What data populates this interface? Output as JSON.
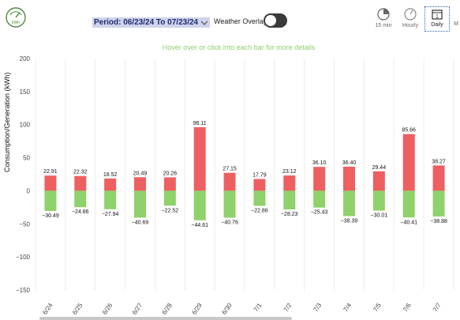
{
  "header": {
    "period_label": "Period: 06/23/24 To 07/23/24",
    "weather_overlay_label": "Weather Overlay",
    "weather_overlay_on": false,
    "views": [
      {
        "label": "15 min",
        "icon": "clock-icon"
      },
      {
        "label": "Hourly",
        "icon": "gauge-icon"
      },
      {
        "label": "Daily",
        "icon": "calendar-day-icon",
        "active": true
      },
      {
        "label": "M",
        "icon": "calendar-month-icon"
      }
    ],
    "logo_icon": "kwh-meter-icon",
    "logo_text": "kWh"
  },
  "hint": "Hover over or click into each bar for more details",
  "chart_data": {
    "type": "bar",
    "ylabel": "Consumption/Generation (kWh)",
    "ylim": [
      -150,
      200
    ],
    "yticks": [
      200,
      150,
      100,
      50,
      0,
      -50,
      -100,
      -150
    ],
    "grid": "vertical",
    "categories": [
      "6/24",
      "6/25",
      "6/26",
      "6/27",
      "6/28",
      "6/29",
      "6/30",
      "7/1",
      "7/2",
      "7/3",
      "7/4",
      "7/5",
      "7/6",
      "7/7"
    ],
    "series": [
      {
        "values": [
          22.91,
          22.32,
          18.52,
          20.49,
          20.26,
          96.11,
          27.15,
          17.79,
          23.12,
          36.1,
          36.4,
          29.44,
          85.66,
          38.27
        ],
        "color": "#ee5f61"
      },
      {
        "values": [
          -30.49,
          -24.86,
          -27.94,
          -40.69,
          -22.52,
          -44.61,
          -40.76,
          -22.86,
          -28.23,
          -25.43,
          -38.39,
          -30.01,
          -40.41,
          -38.88
        ],
        "color": "#8fd16a"
      }
    ],
    "positive_labels": [
      "22.91",
      "22.32",
      "18.52",
      "20.49",
      "20.26",
      "96.11",
      "27.15",
      "17.79",
      "23.12",
      "36.10",
      "36.40",
      "29.44",
      "85.66",
      "38.27"
    ],
    "negative_labels": [
      "−30.49",
      "−24.86",
      "−27.94",
      "−40.69",
      "−22.52",
      "−44.61",
      "−40.76",
      "−22.86",
      "−28.23",
      "−25.43",
      "−38.39",
      "−30.01",
      "−40.41",
      "−38.88"
    ],
    "tick_labels": [
      "200",
      "150",
      "100",
      "50",
      "0",
      "−50",
      "−100",
      "−150"
    ]
  }
}
